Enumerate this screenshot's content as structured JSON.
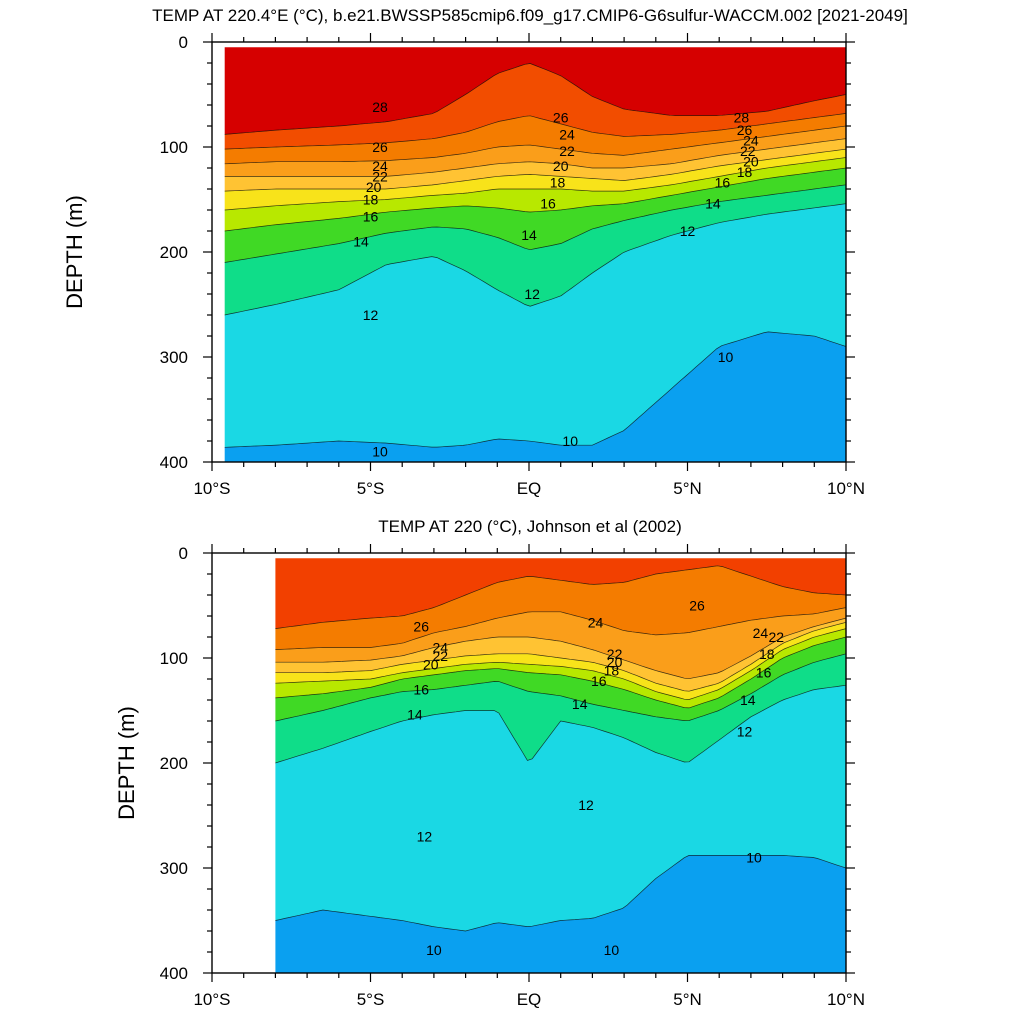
{
  "chart_data": [
    {
      "type": "contour",
      "title": "TEMP AT 220.4°E (°C), b.e21.BWSSP585cmip6.f09_g17.CMIP6-G6sulfur-WACCM.002 [2021-2049]",
      "xlabel": "",
      "ylabel": "DEPTH (m)",
      "xlim": [
        -10,
        10
      ],
      "ylim": [
        400,
        0
      ],
      "x_ticks": [
        {
          "value": -10,
          "label": "10°S"
        },
        {
          "value": -5,
          "label": "5°S"
        },
        {
          "value": 0,
          "label": "EQ"
        },
        {
          "value": 5,
          "label": "5°N"
        },
        {
          "value": 10,
          "label": "10°N"
        }
      ],
      "y_ticks": [
        0,
        100,
        200,
        300,
        400
      ],
      "data_extent_lat": [
        -9.6,
        10
      ],
      "lat": [
        -9.6,
        -8,
        -6,
        -4.5,
        -3,
        -2,
        -1,
        0,
        1,
        2,
        3,
        4.5,
        6,
        7.5,
        9,
        10
      ],
      "isotherms": [
        {
          "level": 28,
          "depth": [
            88,
            84,
            80,
            76,
            68,
            50,
            30,
            20,
            32,
            52,
            64,
            70,
            70,
            66,
            56,
            50
          ]
        },
        {
          "level": 26,
          "depth": [
            102,
            100,
            98,
            96,
            92,
            86,
            76,
            70,
            78,
            86,
            90,
            88,
            84,
            78,
            72,
            68
          ]
        },
        {
          "level": 24,
          "depth": [
            116,
            114,
            114,
            113,
            110,
            106,
            100,
            98,
            102,
            106,
            108,
            102,
            96,
            90,
            84,
            80
          ]
        },
        {
          "level": 22,
          "depth": [
            128,
            128,
            128,
            128,
            124,
            120,
            116,
            114,
            116,
            120,
            120,
            116,
            108,
            102,
            96,
            92
          ]
        },
        {
          "level": 20,
          "depth": [
            142,
            140,
            140,
            140,
            136,
            132,
            128,
            126,
            128,
            130,
            132,
            126,
            118,
            112,
            106,
            102
          ]
        },
        {
          "level": 18,
          "depth": [
            160,
            156,
            152,
            150,
            146,
            144,
            140,
            140,
            140,
            142,
            142,
            136,
            128,
            120,
            114,
            110
          ]
        },
        {
          "level": 16,
          "depth": [
            180,
            174,
            168,
            162,
            158,
            156,
            158,
            162,
            160,
            156,
            154,
            146,
            138,
            130,
            124,
            120
          ]
        },
        {
          "level": 14,
          "depth": [
            210,
            202,
            192,
            182,
            176,
            178,
            186,
            198,
            192,
            178,
            170,
            160,
            152,
            146,
            140,
            136
          ]
        },
        {
          "level": 12,
          "depth": [
            260,
            250,
            236,
            212,
            204,
            218,
            236,
            252,
            242,
            220,
            200,
            184,
            172,
            164,
            158,
            154
          ]
        },
        {
          "level": 10,
          "depth": [
            386,
            384,
            380,
            382,
            386,
            384,
            378,
            380,
            384,
            384,
            370,
            330,
            290,
            276,
            280,
            290
          ]
        }
      ],
      "contour_labels": [
        {
          "text": "28",
          "lat": -4.7,
          "depth": 62
        },
        {
          "text": "26",
          "lat": 1.0,
          "depth": 72
        },
        {
          "text": "28",
          "lat": 6.7,
          "depth": 72
        },
        {
          "text": "26",
          "lat": 6.8,
          "depth": 84
        },
        {
          "text": "24",
          "lat": 7.0,
          "depth": 94
        },
        {
          "text": "22",
          "lat": 6.9,
          "depth": 104
        },
        {
          "text": "20",
          "lat": 7.0,
          "depth": 114
        },
        {
          "text": "18",
          "lat": 6.8,
          "depth": 124
        },
        {
          "text": "26",
          "lat": -4.7,
          "depth": 100
        },
        {
          "text": "24",
          "lat": -4.7,
          "depth": 118
        },
        {
          "text": "22",
          "lat": -4.7,
          "depth": 128
        },
        {
          "text": "20",
          "lat": -4.9,
          "depth": 138
        },
        {
          "text": "18",
          "lat": -5.0,
          "depth": 150
        },
        {
          "text": "16",
          "lat": -5.0,
          "depth": 166
        },
        {
          "text": "14",
          "lat": -5.3,
          "depth": 190
        },
        {
          "text": "12",
          "lat": -5.0,
          "depth": 260
        },
        {
          "text": "10",
          "lat": -4.7,
          "depth": 390
        },
        {
          "text": "24",
          "lat": 1.2,
          "depth": 88
        },
        {
          "text": "22",
          "lat": 1.2,
          "depth": 104
        },
        {
          "text": "20",
          "lat": 1.0,
          "depth": 118
        },
        {
          "text": "18",
          "lat": 0.9,
          "depth": 134
        },
        {
          "text": "16",
          "lat": 0.6,
          "depth": 154
        },
        {
          "text": "14",
          "lat": 0.0,
          "depth": 184
        },
        {
          "text": "16",
          "lat": 6.1,
          "depth": 134
        },
        {
          "text": "14",
          "lat": 5.8,
          "depth": 154
        },
        {
          "text": "12",
          "lat": 5.0,
          "depth": 180
        },
        {
          "text": "12",
          "lat": 0.1,
          "depth": 240
        },
        {
          "text": "10",
          "lat": 1.3,
          "depth": 380
        },
        {
          "text": "10",
          "lat": 6.2,
          "depth": 300
        }
      ],
      "level_colors": {
        "30": "#d60000",
        "28": "#f22e00",
        "26": "#f26b00",
        "24": "#f58c00",
        "22": "#ffb033",
        "20": "#ffd633",
        "18": "#f0f000",
        "16": "#7fe000",
        "14": "#00d24a",
        "12": "#1de8c8",
        "10": "#16c8ff",
        "8": "#0aa0f0",
        "6": "#0066e0"
      }
    },
    {
      "type": "contour",
      "title": "TEMP AT 220 (°C), Johnson et al (2002)",
      "xlabel": "",
      "ylabel": "DEPTH (m)",
      "xlim": [
        -10,
        10
      ],
      "ylim": [
        400,
        0
      ],
      "x_ticks": [
        {
          "value": -10,
          "label": "10°S"
        },
        {
          "value": -5,
          "label": "5°S"
        },
        {
          "value": 0,
          "label": "EQ"
        },
        {
          "value": 5,
          "label": "5°N"
        },
        {
          "value": 10,
          "label": "10°N"
        }
      ],
      "y_ticks": [
        0,
        100,
        200,
        300,
        400
      ],
      "data_extent_lat": [
        -8,
        10
      ],
      "lat": [
        -8,
        -6.5,
        -5,
        -4,
        -3,
        -2,
        -1,
        0,
        1,
        2,
        3,
        4,
        5,
        6,
        7,
        8,
        9,
        10
      ],
      "isotherms": [
        {
          "level": 26,
          "depth": [
            72,
            66,
            62,
            60,
            52,
            40,
            28,
            22,
            26,
            30,
            28,
            20,
            16,
            12,
            22,
            32,
            38,
            40
          ]
        },
        {
          "level": 24,
          "depth": [
            92,
            90,
            90,
            86,
            76,
            70,
            62,
            56,
            56,
            64,
            74,
            78,
            76,
            70,
            64,
            60,
            58,
            52
          ]
        },
        {
          "level": 22,
          "depth": [
            104,
            104,
            102,
            98,
            90,
            84,
            80,
            80,
            84,
            92,
            102,
            112,
            120,
            114,
            98,
            80,
            70,
            62
          ]
        },
        {
          "level": 20,
          "depth": [
            114,
            114,
            112,
            106,
            102,
            98,
            96,
            96,
            100,
            104,
            112,
            124,
            132,
            124,
            106,
            86,
            74,
            66
          ]
        },
        {
          "level": 18,
          "depth": [
            124,
            122,
            120,
            114,
            110,
            106,
            104,
            106,
            108,
            112,
            120,
            132,
            140,
            130,
            112,
            92,
            80,
            72
          ]
        },
        {
          "level": 16,
          "depth": [
            138,
            134,
            128,
            120,
            116,
            112,
            110,
            114,
            116,
            122,
            130,
            140,
            148,
            138,
            120,
            100,
            88,
            80
          ]
        },
        {
          "level": 14,
          "depth": [
            160,
            150,
            138,
            132,
            130,
            126,
            122,
            132,
            136,
            144,
            150,
            156,
            160,
            150,
            134,
            116,
            104,
            96
          ]
        },
        {
          "level": 12,
          "depth": [
            200,
            186,
            170,
            160,
            154,
            150,
            150,
            200,
            160,
            166,
            176,
            190,
            200,
            178,
            156,
            140,
            130,
            126
          ]
        },
        {
          "level": 10,
          "depth": [
            350,
            340,
            346,
            350,
            356,
            360,
            352,
            356,
            350,
            348,
            338,
            310,
            288,
            288,
            288,
            288,
            290,
            300
          ]
        }
      ],
      "contour_labels": [
        {
          "text": "26",
          "lat": -3.4,
          "depth": 70
        },
        {
          "text": "26",
          "lat": 5.3,
          "depth": 50
        },
        {
          "text": "24",
          "lat": 2.1,
          "depth": 66
        },
        {
          "text": "24",
          "lat": 7.3,
          "depth": 76
        },
        {
          "text": "22",
          "lat": 7.8,
          "depth": 80
        },
        {
          "text": "24",
          "lat": -2.8,
          "depth": 90
        },
        {
          "text": "22",
          "lat": -2.8,
          "depth": 98
        },
        {
          "text": "20",
          "lat": -3.1,
          "depth": 106
        },
        {
          "text": "22",
          "lat": 2.7,
          "depth": 96
        },
        {
          "text": "20",
          "lat": 2.7,
          "depth": 104
        },
        {
          "text": "18",
          "lat": 2.6,
          "depth": 112
        },
        {
          "text": "16",
          "lat": 2.2,
          "depth": 122
        },
        {
          "text": "18",
          "lat": 7.5,
          "depth": 96
        },
        {
          "text": "16",
          "lat": 7.4,
          "depth": 114
        },
        {
          "text": "16",
          "lat": -3.4,
          "depth": 130
        },
        {
          "text": "14",
          "lat": -3.6,
          "depth": 154
        },
        {
          "text": "14",
          "lat": 1.6,
          "depth": 144
        },
        {
          "text": "14",
          "lat": 6.9,
          "depth": 140
        },
        {
          "text": "12",
          "lat": 6.8,
          "depth": 170
        },
        {
          "text": "12",
          "lat": 1.8,
          "depth": 240
        },
        {
          "text": "12",
          "lat": -3.3,
          "depth": 270
        },
        {
          "text": "10",
          "lat": -3.0,
          "depth": 378
        },
        {
          "text": "10",
          "lat": 2.6,
          "depth": 378
        },
        {
          "text": "10",
          "lat": 7.1,
          "depth": 290
        }
      ],
      "level_colors": {
        "28": "#f24000",
        "26": "#f26b00",
        "24": "#f58c00",
        "22": "#ffb033",
        "20": "#ffd633",
        "18": "#f0f000",
        "16": "#7fe000",
        "14": "#00d24a",
        "12": "#1de8c8",
        "10": "#16c8ff",
        "8": "#0aa0f0",
        "6": "#0066e0"
      }
    }
  ]
}
